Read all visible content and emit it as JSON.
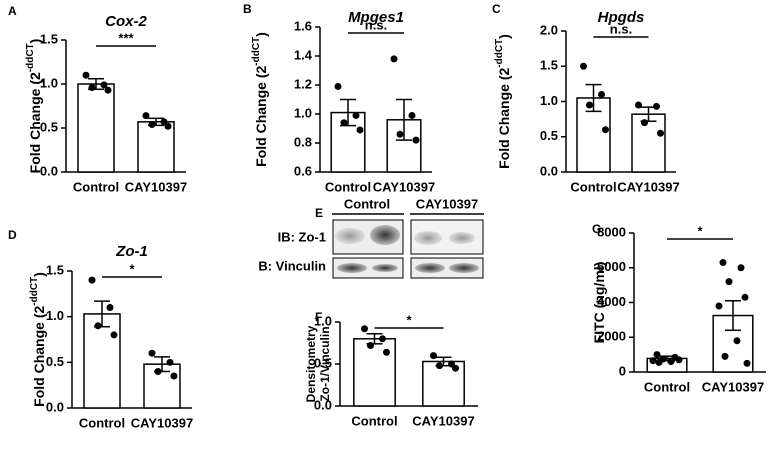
{
  "chart_data": [
    {
      "type": "bar",
      "panel": "A",
      "title": "Cox-2",
      "ylabel": "Fold Change (2",
      "ylabel_sup": "-ddCT",
      "ylabel_end": ")",
      "categories": [
        "Control",
        "CAY10397"
      ],
      "values": [
        1.0,
        0.57
      ],
      "errors": [
        0.06,
        0.04
      ],
      "points": [
        [
          1.1,
          0.99,
          0.96,
          0.93
        ],
        [
          0.64,
          0.57,
          0.54,
          0.52
        ]
      ],
      "significance": "***",
      "ylim": [
        0,
        1.5
      ],
      "yticks": [
        {
          "value": 0,
          "label": "0.0"
        },
        0.5,
        {
          "value": 1,
          "label": "1.0"
        },
        1.5
      ]
    },
    {
      "type": "bar",
      "panel": "B",
      "title": "Mpges1",
      "ylabel": "Fold Change (2",
      "ylabel_sup": "-ddCT",
      "ylabel_end": ")",
      "categories": [
        "Control",
        "CAY10397"
      ],
      "values": [
        1.01,
        0.96
      ],
      "errors": [
        0.09,
        0.14
      ],
      "points": [
        [
          1.19,
          0.99,
          0.94,
          0.89
        ],
        [
          1.38,
          0.99,
          0.86,
          0.82
        ]
      ],
      "significance": "n.s.",
      "ylim": [
        0.6,
        1.6
      ],
      "yticks": [
        0.6,
        0.8,
        {
          "value": 1,
          "label": "1.0"
        },
        1.2,
        1.4,
        1.6
      ]
    },
    {
      "type": "bar",
      "panel": "C",
      "title": "Hpgds",
      "ylabel": "Fold Change (2",
      "ylabel_sup": "-ddCT",
      "ylabel_end": ")",
      "categories": [
        "Control",
        "CAY10397"
      ],
      "values": [
        1.05,
        0.82
      ],
      "errors": [
        0.19,
        0.1
      ],
      "points": [
        [
          1.5,
          1.1,
          0.95,
          0.6
        ],
        [
          0.95,
          0.93,
          0.7,
          0.55
        ]
      ],
      "significance": "n.s.",
      "ylim": [
        0,
        2
      ],
      "yticks": [
        {
          "value": 0,
          "label": "0.0"
        },
        0.5,
        {
          "value": 1,
          "label": "1.0"
        },
        1.5,
        {
          "value": 2,
          "label": "2.0"
        }
      ]
    },
    {
      "type": "bar",
      "panel": "D",
      "title": "Zo-1",
      "ylabel": "Fold Change (2",
      "ylabel_sup": "-ddCT",
      "ylabel_end": ")",
      "categories": [
        "Control",
        "CAY10397"
      ],
      "values": [
        1.03,
        0.48
      ],
      "errors": [
        0.14,
        0.08
      ],
      "points": [
        [
          1.4,
          1.1,
          0.9,
          0.8
        ],
        [
          0.6,
          0.5,
          0.4,
          0.35
        ]
      ],
      "significance": "*",
      "ylim": [
        0,
        1.5
      ],
      "yticks": [
        {
          "value": 0,
          "label": "0.0"
        },
        0.5,
        {
          "value": 1,
          "label": "1.0"
        },
        1.5
      ]
    },
    {
      "type": "bar",
      "panel": "F",
      "ylabel_lines": [
        "Densitometry",
        "Zo-1/Vinculin"
      ],
      "categories": [
        "Control",
        "CAY10397"
      ],
      "values": [
        0.8,
        0.53
      ],
      "errors": [
        0.06,
        0.05
      ],
      "points": [
        [
          0.92,
          0.8,
          0.72,
          0.64
        ],
        [
          0.6,
          0.5,
          0.48,
          0.45
        ]
      ],
      "significance": "*",
      "ylim": [
        0,
        1
      ],
      "yticks": [
        {
          "value": 0,
          "label": "0.0"
        },
        0.5,
        {
          "value": 1,
          "label": "1.0"
        }
      ]
    },
    {
      "type": "bar",
      "panel": "G",
      "ylabel": "FITC  (ng/ml)",
      "categories": [
        "Control",
        "CAY10397"
      ],
      "values": [
        780,
        3250
      ],
      "errors": [
        130,
        850
      ],
      "points": [
        [
          1000,
          850,
          750,
          700,
          650,
          600,
          550
        ],
        [
          6300,
          6000,
          5200,
          4300,
          3800,
          1800,
          900,
          500
        ]
      ],
      "significance": "*",
      "ylim": [
        0,
        8000
      ],
      "yticks": [
        0,
        2000,
        4000,
        6000,
        8000
      ]
    }
  ],
  "blot": {
    "panel": "E",
    "columns": [
      "Control",
      "CAY10397"
    ],
    "rows": [
      "IB: Zo-1",
      "B: Vinculin"
    ]
  }
}
